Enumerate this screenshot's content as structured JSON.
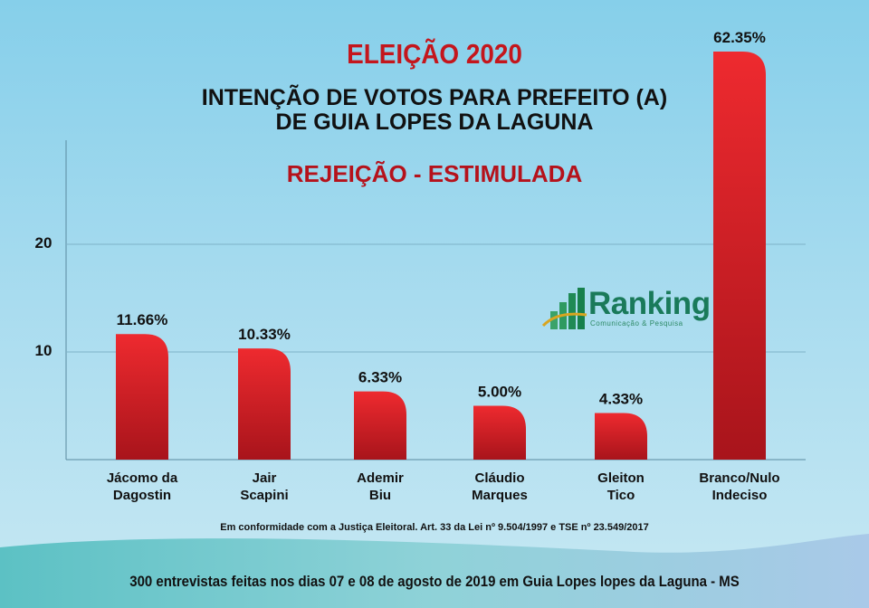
{
  "chart_data": {
    "type": "bar",
    "title": "ELEIÇÃO 2020",
    "subtitle": [
      "INTENÇÃO DE VOTOS PARA PREFEITO (A)",
      "DE GUIA LOPES DA LAGUNA"
    ],
    "section": "REJEIÇÃO - ESTIMULADA",
    "categories": [
      [
        "Jácomo da",
        "Dagostin"
      ],
      [
        "Jair",
        "Scapini"
      ],
      [
        "Ademir",
        "Biu"
      ],
      [
        "Cláudio",
        "Marques"
      ],
      [
        "Gleiton",
        "Tico"
      ],
      [
        "Branco/Nulo",
        "Indeciso"
      ]
    ],
    "values": [
      11.66,
      10.33,
      6.33,
      5.0,
      4.33,
      62.35
    ],
    "data_labels": [
      "11.66%",
      "10.33%",
      "6.33%",
      "5.00%",
      "4.33%",
      "62.35%"
    ],
    "yticks": [
      10,
      20
    ],
    "ylim": [
      0,
      30
    ],
    "grid": true,
    "bar_color": "#e3202a"
  },
  "logo": {
    "name": "Ranking",
    "tagline": "Comunicação & Pesquisa"
  },
  "footnote": "Em conformidade com a Justiça Eleitoral. Art. 33 da Lei nº 9.504/1997 e TSE nº 23.549/2017",
  "source": "300 entrevistas feitas nos dias 07 e 08 de agosto de 2019 em Guia Lopes lopes da Laguna - MS"
}
